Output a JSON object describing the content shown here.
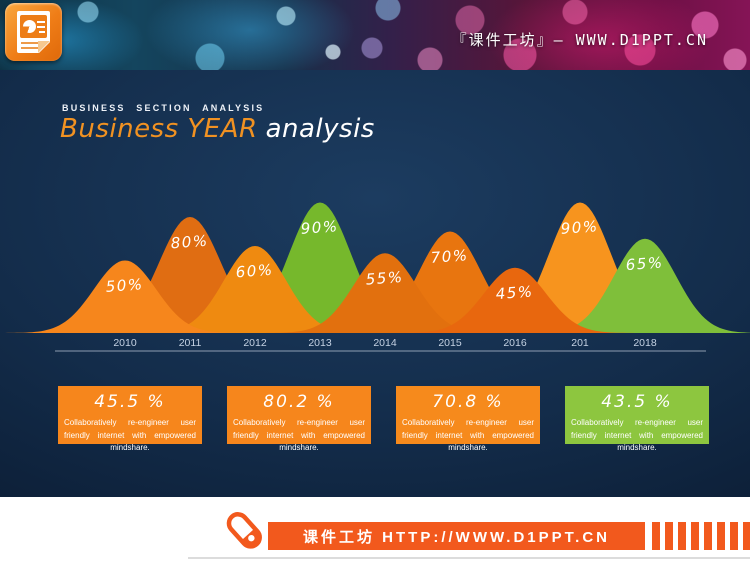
{
  "header": {
    "brand_text": "『课件工坊』— WWW.D1PPT.CN",
    "logo_icon": "powerpoint-document-icon"
  },
  "title": {
    "eyebrow": "BUSINESS SECTION ANALYSIS",
    "accent": "Business YEAR",
    "rest": "analysis"
  },
  "chart_data": {
    "type": "area",
    "title": "Business YEAR analysis",
    "categories": [
      "2010",
      "2011",
      "2012",
      "2013",
      "2014",
      "2015",
      "2016",
      "201",
      "2018"
    ],
    "values": [
      50,
      80,
      60,
      90,
      55,
      70,
      45,
      90,
      65
    ],
    "labels": [
      "50%",
      "80%",
      "60%",
      "90%",
      "55%",
      "70%",
      "45%",
      "90%",
      "65%"
    ],
    "colors": [
      "#f6861c",
      "#e06d12",
      "#ef8a10",
      "#76b82c",
      "#e2700e",
      "#e8750f",
      "#e8670e",
      "#f7941e",
      "#7fbf3a"
    ],
    "xlabel": "",
    "ylabel": "",
    "ylim": [
      0,
      100
    ],
    "grid": false,
    "legend": "none",
    "style": "overlapping gaussian domes on dark navy background, value labels inside domes"
  },
  "cards": [
    {
      "value": "45.5 %",
      "body": "Collaboratively re-engineer user friendly internet with empowered mindshare.",
      "color": "#f6861c"
    },
    {
      "value": "80.2 %",
      "body": "Collaboratively re-engineer user friendly internet with empowered mindshare.",
      "color": "#f6861c"
    },
    {
      "value": "70.8 %",
      "body": "Collaboratively re-engineer user friendly internet with empowered mindshare.",
      "color": "#f68a1c"
    },
    {
      "value": "43.5 %",
      "body": "Collaboratively re-engineer user friendly internet with empowered mindshare.",
      "color": "#8dc63f"
    }
  ],
  "footer": {
    "bar_text": "课件工坊 HTTP://WWW.D1PPT.CN",
    "accent_color": "#f2591d",
    "pen_icon": "pen-capsule-icon",
    "barcode_bars": 9
  },
  "colors": {
    "slide_background": "#0f2440",
    "accent_orange": "#f6861c",
    "accent_green": "#7fbf3a",
    "footer_orange": "#f2591d",
    "axis_line": "#cfd9e8"
  }
}
